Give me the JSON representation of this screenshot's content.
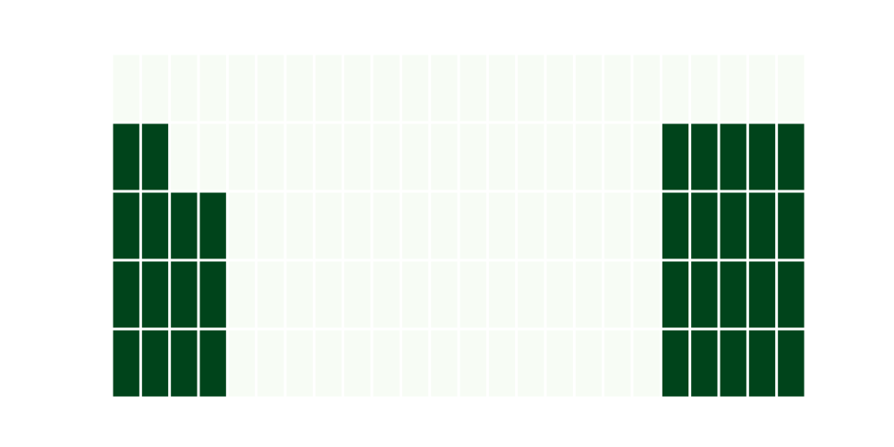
{
  "chart_data": {
    "type": "heatmap",
    "title": "",
    "xlabel": "",
    "ylabel": "",
    "n_cols": 24,
    "n_rows": 5,
    "grid": false,
    "colorbar": false,
    "colors": {
      "low": "#f7fcf5",
      "high": "#00441b",
      "cell_border": "#ffffff",
      "background": "#ffffff"
    },
    "values": [
      [
        0,
        0,
        0,
        0,
        0,
        0,
        0,
        0,
        0,
        0,
        0,
        0,
        0,
        0,
        0,
        0,
        0,
        0,
        0,
        0,
        0,
        0,
        0,
        0
      ],
      [
        1,
        1,
        0,
        0,
        0,
        0,
        0,
        0,
        0,
        0,
        0,
        0,
        0,
        0,
        0,
        0,
        0,
        0,
        0,
        1,
        1,
        1,
        1,
        1
      ],
      [
        1,
        1,
        1,
        1,
        0,
        0,
        0,
        0,
        0,
        0,
        0,
        0,
        0,
        0,
        0,
        0,
        0,
        0,
        0,
        1,
        1,
        1,
        1,
        1
      ],
      [
        1,
        1,
        1,
        1,
        0,
        0,
        0,
        0,
        0,
        0,
        0,
        0,
        0,
        0,
        0,
        0,
        0,
        0,
        0,
        1,
        1,
        1,
        1,
        1
      ],
      [
        1,
        1,
        1,
        1,
        0,
        0,
        0,
        0,
        0,
        0,
        0,
        0,
        0,
        0,
        0,
        0,
        0,
        0,
        0,
        1,
        1,
        1,
        1,
        1
      ]
    ]
  }
}
